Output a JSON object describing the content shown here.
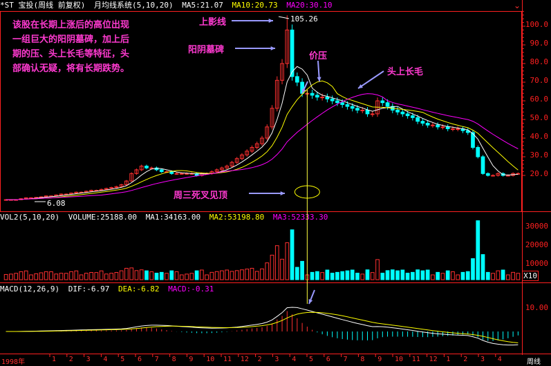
{
  "price_header": {
    "stock": "*ST 宝投(周线 前复权)",
    "system": "月均线系统(5,10,20)",
    "ma5": "MA5:21.07",
    "ma10": "MA10:20.73",
    "ma20": "MA20:30.10"
  },
  "volume_header": {
    "label": "VOL2(5,10,20)",
    "volume": "VOLUME:25188.00",
    "ma1": "MA1:34163.00",
    "ma2": "MA2:53198.80",
    "ma3": "MA3:52333.30"
  },
  "macd_header": {
    "label": "MACD(12,26,9)",
    "dif": "DIF:-6.97",
    "dea": "DEA:-6.82",
    "macd": "MACD:-0.31"
  },
  "colors": {
    "up": "#ff3030",
    "down": "#00ffff",
    "ma5": "#ffffff",
    "ma10": "#ffff00",
    "ma20": "#ff00ff",
    "axis": "#ff2020",
    "annotation": "#ff3ad0",
    "arrow": "#9a9aff"
  },
  "price_axis": [
    "100.0",
    "90.0",
    "80.0",
    "70.0",
    "60.0",
    "50.0",
    "40.0",
    "30.0",
    "20.0"
  ],
  "volume_axis": [
    "30000",
    "20000",
    "10000"
  ],
  "volume_unit": "X10",
  "macd_axis": [
    "10.00"
  ],
  "price_labels": {
    "high": "105.26",
    "low": "6.08"
  },
  "time_axis": {
    "year": "1998年",
    "months": [
      "1",
      "2",
      "3",
      "4",
      "5",
      "6",
      "7",
      "8",
      "9",
      "10",
      "11",
      "12",
      "2",
      "3",
      "4",
      "5",
      "6",
      "7",
      "8",
      "9",
      "10",
      "11",
      "12",
      "1",
      "2",
      "3",
      "4"
    ],
    "period": "周线"
  },
  "annotations": {
    "intro_line1": "该股在长期上涨后的高位出现",
    "intro_line2": "一组巨大的阳阴墓碑，加上后",
    "intro_line3": "期的压、头上长毛等特征，头",
    "intro_line4": "部确认无疑，将有长期跌势。",
    "upper_shadow": "上影线",
    "tombstone": "阳阴墓碑",
    "pressure": "价压",
    "long_hair": "头上长毛",
    "dead_cross": "周三死叉见顶"
  },
  "chart_data": {
    "type": "candlestick",
    "ylim": [
      0,
      110
    ],
    "high_point": 105.26,
    "low_point": 6.08,
    "close": [
      7,
      7,
      7,
      7.5,
      8,
      8,
      8.2,
      8.5,
      9,
      9,
      9.5,
      10,
      10,
      10.5,
      11,
      11,
      11.5,
      12,
      12,
      12.5,
      13,
      13.5,
      14,
      15,
      17,
      21,
      23,
      25,
      24,
      24,
      23,
      22,
      22,
      21,
      21,
      21,
      21,
      21,
      20,
      21,
      21,
      22,
      23,
      24,
      25,
      27,
      29,
      31,
      33,
      35,
      37,
      40,
      46,
      56,
      71,
      80,
      98,
      73,
      70,
      64,
      64,
      63,
      62,
      62,
      61,
      60,
      59,
      58,
      57,
      56,
      55,
      55,
      53,
      53,
      60,
      59,
      57,
      55,
      54,
      53,
      52,
      51,
      49,
      48,
      47,
      47,
      46,
      46,
      45,
      45,
      45,
      44,
      43,
      35,
      30,
      21,
      20,
      20,
      21,
      20,
      20,
      21,
      21
    ],
    "volume_ma_levels": {
      "ma1": 34163,
      "ma2": 53198.8,
      "ma3": 52333.3
    },
    "macd": {
      "dif": -6.97,
      "dea": -6.82,
      "macd": -0.31
    }
  }
}
